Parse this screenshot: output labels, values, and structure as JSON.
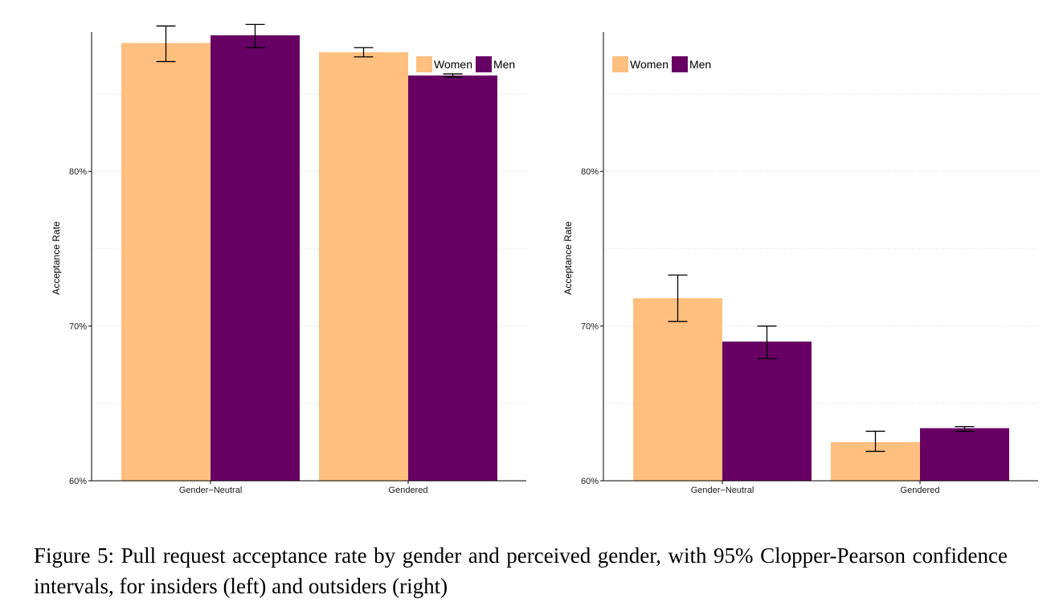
{
  "colors": {
    "women": "#FFBF7F",
    "men": "#680064",
    "grid": "#dddddd",
    "axis": "#000000",
    "errorbar": "#000000"
  },
  "caption": "Figure 5:  Pull request acceptance rate by gender and perceived gender, with 95% Clopper-Pearson confidence intervals, for insiders (left) and outsiders (right)",
  "chart_data": [
    {
      "type": "bar",
      "panel": "insiders (left)",
      "title": "",
      "xlabel": "",
      "ylabel": "Acceptance Rate",
      "categories": [
        "Gender−Neutral",
        "Gendered"
      ],
      "ylim": [
        60,
        89
      ],
      "yticks": [
        60,
        70,
        80
      ],
      "ytick_labels": [
        "60%",
        "70%",
        "80%"
      ],
      "grid": true,
      "legend_position": "top-right",
      "series": [
        {
          "name": "Women",
          "color": "#FFBF7F",
          "values": [
            88.3,
            87.7
          ],
          "ci_low": [
            87.1,
            87.4
          ],
          "ci_high": [
            89.4,
            88.0
          ]
        },
        {
          "name": "Men",
          "color": "#680064",
          "values": [
            88.8,
            86.2
          ],
          "ci_low": [
            88.0,
            86.1
          ],
          "ci_high": [
            89.5,
            86.3
          ]
        }
      ]
    },
    {
      "type": "bar",
      "panel": "outsiders (right)",
      "title": "",
      "xlabel": "",
      "ylabel": "Acceptance Rate",
      "categories": [
        "Gender−Neutral",
        "Gendered"
      ],
      "ylim": [
        60,
        89
      ],
      "yticks": [
        60,
        70,
        80
      ],
      "ytick_labels": [
        "60%",
        "70%",
        "80%"
      ],
      "grid": true,
      "legend_position": "top-left",
      "series": [
        {
          "name": "Women",
          "color": "#FFBF7F",
          "values": [
            71.8,
            62.5
          ],
          "ci_low": [
            70.3,
            61.9
          ],
          "ci_high": [
            73.3,
            63.2
          ]
        },
        {
          "name": "Men",
          "color": "#680064",
          "values": [
            69.0,
            63.4
          ],
          "ci_low": [
            67.9,
            63.2
          ],
          "ci_high": [
            70.0,
            63.5
          ]
        }
      ]
    }
  ]
}
